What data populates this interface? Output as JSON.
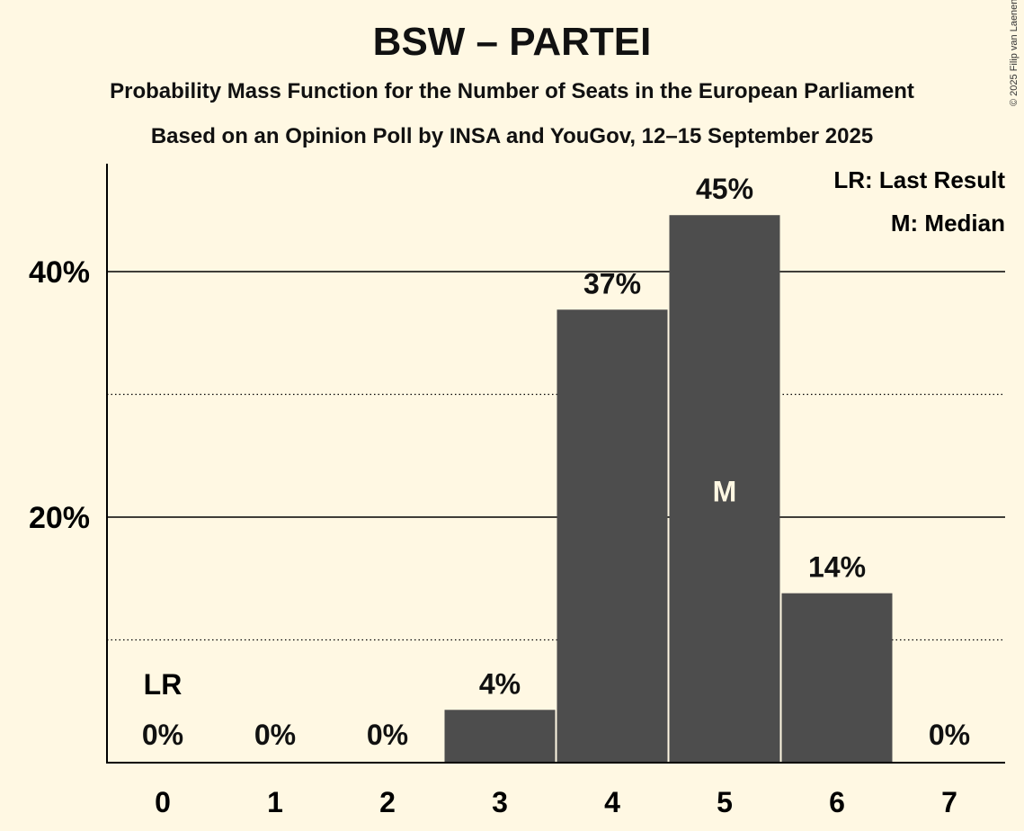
{
  "chart_data": {
    "type": "bar",
    "title": "BSW – PARTEI",
    "subtitle": "Probability Mass Function for the Number of Seats in the European Parliament",
    "subtitle2": "Based on an Opinion Poll by INSA and YouGov, 12–15 September 2025",
    "categories": [
      "0",
      "1",
      "2",
      "3",
      "4",
      "5",
      "6",
      "7"
    ],
    "values": [
      0,
      0,
      0,
      4.3,
      36.9,
      44.6,
      13.8,
      0
    ],
    "data_labels": [
      "0%",
      "0%",
      "0%",
      "4%",
      "37%",
      "45%",
      "14%",
      "0%"
    ],
    "ylim": [
      0,
      48
    ],
    "yticks": [
      {
        "value": 20,
        "label": "20%"
      },
      {
        "value": 40,
        "label": "40%"
      }
    ],
    "minor_gridlines": [
      10,
      30
    ],
    "last_result": {
      "index": 0,
      "label": "LR"
    },
    "median": {
      "index": 5,
      "label": "M"
    },
    "legend": [
      "LR: Last Result",
      "M: Median"
    ],
    "legend_placement": "top-right",
    "bar_color": "#4d4d4d"
  },
  "copyright": "© 2025 Filip van Laenen"
}
